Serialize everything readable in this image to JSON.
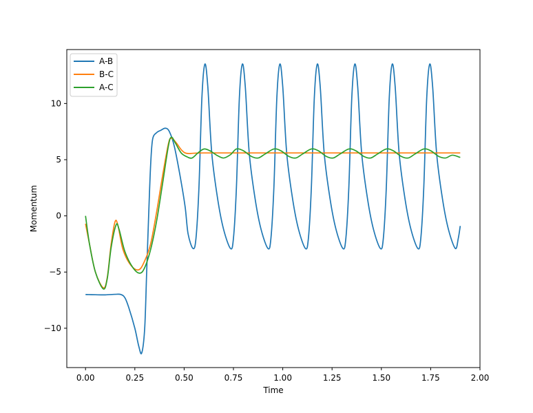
{
  "chart_data": {
    "type": "line",
    "title": "",
    "xlabel": "Time",
    "ylabel": "Momentum",
    "xlim": [
      -0.095,
      2.0
    ],
    "ylim": [
      -13.5,
      14.8
    ],
    "xticks": [
      0.0,
      0.25,
      0.5,
      0.75,
      1.0,
      1.25,
      1.5,
      1.75,
      2.0
    ],
    "xtick_labels": [
      "0.00",
      "0.25",
      "0.50",
      "0.75",
      "1.00",
      "1.25",
      "1.50",
      "1.75",
      "2.00"
    ],
    "yticks": [
      -10,
      -5,
      0,
      5,
      10
    ],
    "ytick_labels": [
      "−10",
      "−5",
      "0",
      "5",
      "10"
    ],
    "grid": false,
    "legend_position": "top-left",
    "series": [
      {
        "name": "A-B",
        "color": "#1f77b4",
        "points": [
          [
            0.0,
            -7.0
          ],
          [
            0.05,
            -7.02
          ],
          [
            0.1,
            -7.03
          ],
          [
            0.15,
            -6.98
          ],
          [
            0.18,
            -7.0
          ],
          [
            0.2,
            -7.3
          ],
          [
            0.22,
            -8.2
          ],
          [
            0.25,
            -10.0
          ],
          [
            0.27,
            -11.6
          ],
          [
            0.285,
            -12.2
          ],
          [
            0.3,
            -10.0
          ],
          [
            0.31,
            -5.0
          ],
          [
            0.32,
            0.0
          ],
          [
            0.33,
            4.5
          ],
          [
            0.34,
            6.8
          ],
          [
            0.36,
            7.4
          ],
          [
            0.38,
            7.6
          ],
          [
            0.405,
            7.8
          ],
          [
            0.425,
            7.5
          ],
          [
            0.45,
            6.2
          ],
          [
            0.48,
            3.5
          ],
          [
            0.505,
            0.8
          ],
          [
            0.52,
            -1.6
          ],
          [
            0.545,
            -2.9
          ],
          [
            0.56,
            -2.0
          ],
          [
            0.575,
            2.5
          ],
          [
            0.59,
            10.5
          ],
          [
            0.605,
            13.5
          ],
          [
            0.62,
            11.5
          ],
          [
            0.64,
            5.6
          ],
          [
            0.67,
            1.5
          ],
          [
            0.7,
            -1.2
          ],
          [
            0.735,
            -2.9
          ],
          [
            0.75,
            -2.0
          ],
          [
            0.765,
            2.5
          ],
          [
            0.78,
            10.5
          ],
          [
            0.795,
            13.5
          ],
          [
            0.81,
            11.5
          ],
          [
            0.83,
            5.6
          ],
          [
            0.86,
            1.5
          ],
          [
            0.89,
            -1.2
          ],
          [
            0.925,
            -2.9
          ],
          [
            0.94,
            -2.0
          ],
          [
            0.955,
            2.5
          ],
          [
            0.97,
            10.5
          ],
          [
            0.985,
            13.5
          ],
          [
            1.0,
            11.5
          ],
          [
            1.02,
            5.6
          ],
          [
            1.05,
            1.5
          ],
          [
            1.08,
            -1.2
          ],
          [
            1.115,
            -2.9
          ],
          [
            1.13,
            -2.0
          ],
          [
            1.145,
            2.5
          ],
          [
            1.16,
            10.5
          ],
          [
            1.175,
            13.5
          ],
          [
            1.19,
            11.5
          ],
          [
            1.21,
            5.6
          ],
          [
            1.24,
            1.5
          ],
          [
            1.27,
            -1.2
          ],
          [
            1.305,
            -2.9
          ],
          [
            1.32,
            -2.0
          ],
          [
            1.335,
            2.5
          ],
          [
            1.35,
            10.5
          ],
          [
            1.365,
            13.5
          ],
          [
            1.38,
            11.5
          ],
          [
            1.4,
            5.6
          ],
          [
            1.43,
            1.5
          ],
          [
            1.46,
            -1.2
          ],
          [
            1.495,
            -2.9
          ],
          [
            1.51,
            -2.0
          ],
          [
            1.525,
            2.5
          ],
          [
            1.54,
            10.5
          ],
          [
            1.555,
            13.5
          ],
          [
            1.57,
            11.5
          ],
          [
            1.59,
            5.6
          ],
          [
            1.62,
            1.5
          ],
          [
            1.65,
            -1.2
          ],
          [
            1.685,
            -2.9
          ],
          [
            1.7,
            -2.0
          ],
          [
            1.715,
            2.5
          ],
          [
            1.73,
            10.5
          ],
          [
            1.745,
            13.5
          ],
          [
            1.76,
            11.5
          ],
          [
            1.78,
            5.6
          ],
          [
            1.81,
            1.5
          ],
          [
            1.84,
            -1.2
          ],
          [
            1.875,
            -2.9
          ],
          [
            1.89,
            -2.0
          ],
          [
            1.9,
            -0.9
          ]
        ]
      },
      {
        "name": "B-C",
        "color": "#ff7f0e",
        "points": [
          [
            0.0,
            -0.7
          ],
          [
            0.02,
            -2.5
          ],
          [
            0.05,
            -5.0
          ],
          [
            0.09,
            -6.4
          ],
          [
            0.11,
            -5.5
          ],
          [
            0.13,
            -2.5
          ],
          [
            0.15,
            -0.5
          ],
          [
            0.165,
            -0.9
          ],
          [
            0.19,
            -3.0
          ],
          [
            0.23,
            -4.4
          ],
          [
            0.27,
            -4.8
          ],
          [
            0.3,
            -4.0
          ],
          [
            0.33,
            -2.5
          ],
          [
            0.36,
            0.3
          ],
          [
            0.39,
            3.5
          ],
          [
            0.42,
            6.4
          ],
          [
            0.435,
            6.9
          ],
          [
            0.46,
            6.5
          ],
          [
            0.49,
            5.8
          ],
          [
            0.52,
            5.55
          ],
          [
            0.6,
            5.6
          ],
          [
            1.0,
            5.6
          ],
          [
            1.5,
            5.6
          ],
          [
            1.9,
            5.6
          ]
        ]
      },
      {
        "name": "A-C",
        "color": "#2ca02c",
        "points": [
          [
            0.0,
            0.0
          ],
          [
            0.02,
            -2.5
          ],
          [
            0.05,
            -5.0
          ],
          [
            0.09,
            -6.5
          ],
          [
            0.11,
            -5.6
          ],
          [
            0.13,
            -2.8
          ],
          [
            0.155,
            -0.8
          ],
          [
            0.17,
            -1.2
          ],
          [
            0.2,
            -3.2
          ],
          [
            0.24,
            -4.6
          ],
          [
            0.275,
            -5.1
          ],
          [
            0.3,
            -4.6
          ],
          [
            0.33,
            -3.0
          ],
          [
            0.36,
            -0.5
          ],
          [
            0.39,
            2.8
          ],
          [
            0.42,
            6.2
          ],
          [
            0.435,
            7.0
          ],
          [
            0.455,
            6.5
          ],
          [
            0.485,
            5.6
          ],
          [
            0.515,
            5.25
          ],
          [
            0.54,
            5.15
          ],
          [
            0.57,
            5.6
          ],
          [
            0.6,
            5.95
          ],
          [
            0.63,
            5.8
          ],
          [
            0.665,
            5.4
          ],
          [
            0.7,
            5.15
          ],
          [
            0.735,
            5.45
          ],
          [
            0.765,
            5.95
          ],
          [
            0.8,
            5.8
          ],
          [
            0.84,
            5.3
          ],
          [
            0.875,
            5.15
          ],
          [
            0.91,
            5.5
          ],
          [
            0.955,
            5.95
          ],
          [
            0.99,
            5.8
          ],
          [
            1.03,
            5.3
          ],
          [
            1.065,
            5.15
          ],
          [
            1.1,
            5.5
          ],
          [
            1.145,
            5.95
          ],
          [
            1.18,
            5.8
          ],
          [
            1.22,
            5.3
          ],
          [
            1.255,
            5.15
          ],
          [
            1.29,
            5.5
          ],
          [
            1.335,
            5.95
          ],
          [
            1.37,
            5.8
          ],
          [
            1.41,
            5.3
          ],
          [
            1.445,
            5.15
          ],
          [
            1.48,
            5.5
          ],
          [
            1.525,
            5.95
          ],
          [
            1.56,
            5.8
          ],
          [
            1.6,
            5.3
          ],
          [
            1.635,
            5.15
          ],
          [
            1.67,
            5.5
          ],
          [
            1.715,
            5.95
          ],
          [
            1.75,
            5.8
          ],
          [
            1.79,
            5.3
          ],
          [
            1.825,
            5.15
          ],
          [
            1.86,
            5.4
          ],
          [
            1.9,
            5.2
          ]
        ]
      }
    ]
  }
}
